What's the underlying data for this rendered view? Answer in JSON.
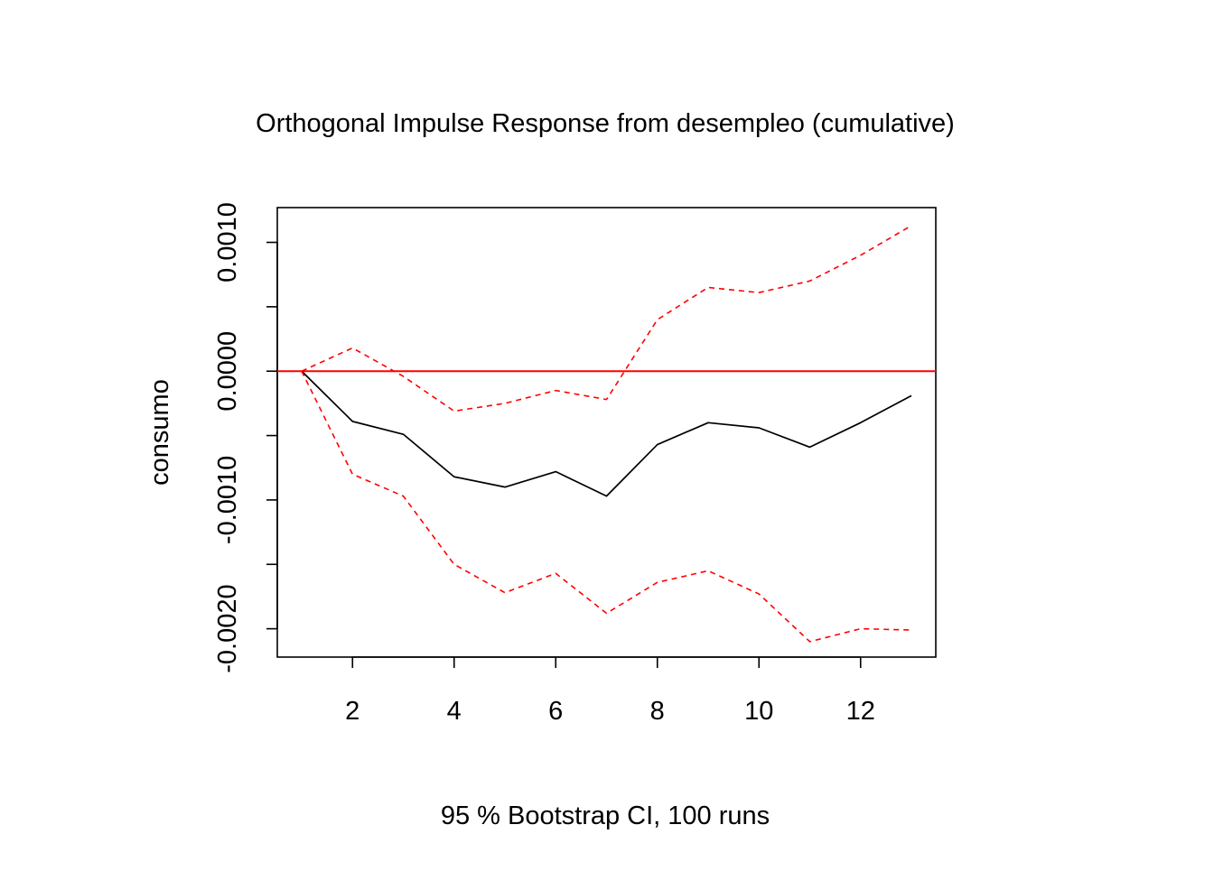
{
  "chart_data": {
    "type": "line",
    "title": "Orthogonal Impulse Response from desempleo (cumulative)",
    "xlabel": "95 % Bootstrap CI,  100 runs",
    "ylabel": "consumo",
    "xlim": [
      0.52,
      13.48
    ],
    "ylim": [
      -0.00222,
      0.00127
    ],
    "x_ticks": [
      2,
      4,
      6,
      8,
      10,
      12
    ],
    "x_tick_labels": [
      "2",
      "4",
      "6",
      "8",
      "10",
      "12"
    ],
    "y_ticks": [
      -0.002,
      -0.0015,
      -0.001,
      -0.0005,
      0.0,
      0.0005,
      0.001
    ],
    "y_tick_labels": [
      "-0.0020",
      "",
      "-0.0010",
      "",
      "0.0000",
      "",
      "0.0010"
    ],
    "x": [
      1,
      2,
      3,
      4,
      5,
      6,
      7,
      8,
      9,
      10,
      11,
      12,
      13
    ],
    "series": [
      {
        "role": "response",
        "color": "#000000",
        "dash": "solid",
        "values": [
          0.0,
          -0.00039,
          -0.00049,
          -0.00082,
          -0.0009,
          -0.00078,
          -0.00097,
          -0.00057,
          -0.0004,
          -0.00044,
          -0.00059,
          -0.0004,
          -0.00019
        ]
      },
      {
        "role": "upper-ci",
        "color": "#ff0000",
        "dash": "dashed",
        "values": [
          0.0,
          0.00018,
          -4e-05,
          -0.00031,
          -0.00025,
          -0.00015,
          -0.00022,
          0.0004,
          0.00065,
          0.00061,
          0.0007,
          0.0009,
          0.00113
        ]
      },
      {
        "role": "lower-ci",
        "color": "#ff0000",
        "dash": "dashed",
        "values": [
          0.0,
          -0.0008,
          -0.00097,
          -0.0015,
          -0.00172,
          -0.00157,
          -0.00188,
          -0.00164,
          -0.00155,
          -0.00173,
          -0.0021,
          -0.002,
          -0.00201
        ]
      }
    ],
    "reference_line": {
      "y": 0.0,
      "color": "#ff0000"
    },
    "grid": false,
    "legend": "none"
  }
}
